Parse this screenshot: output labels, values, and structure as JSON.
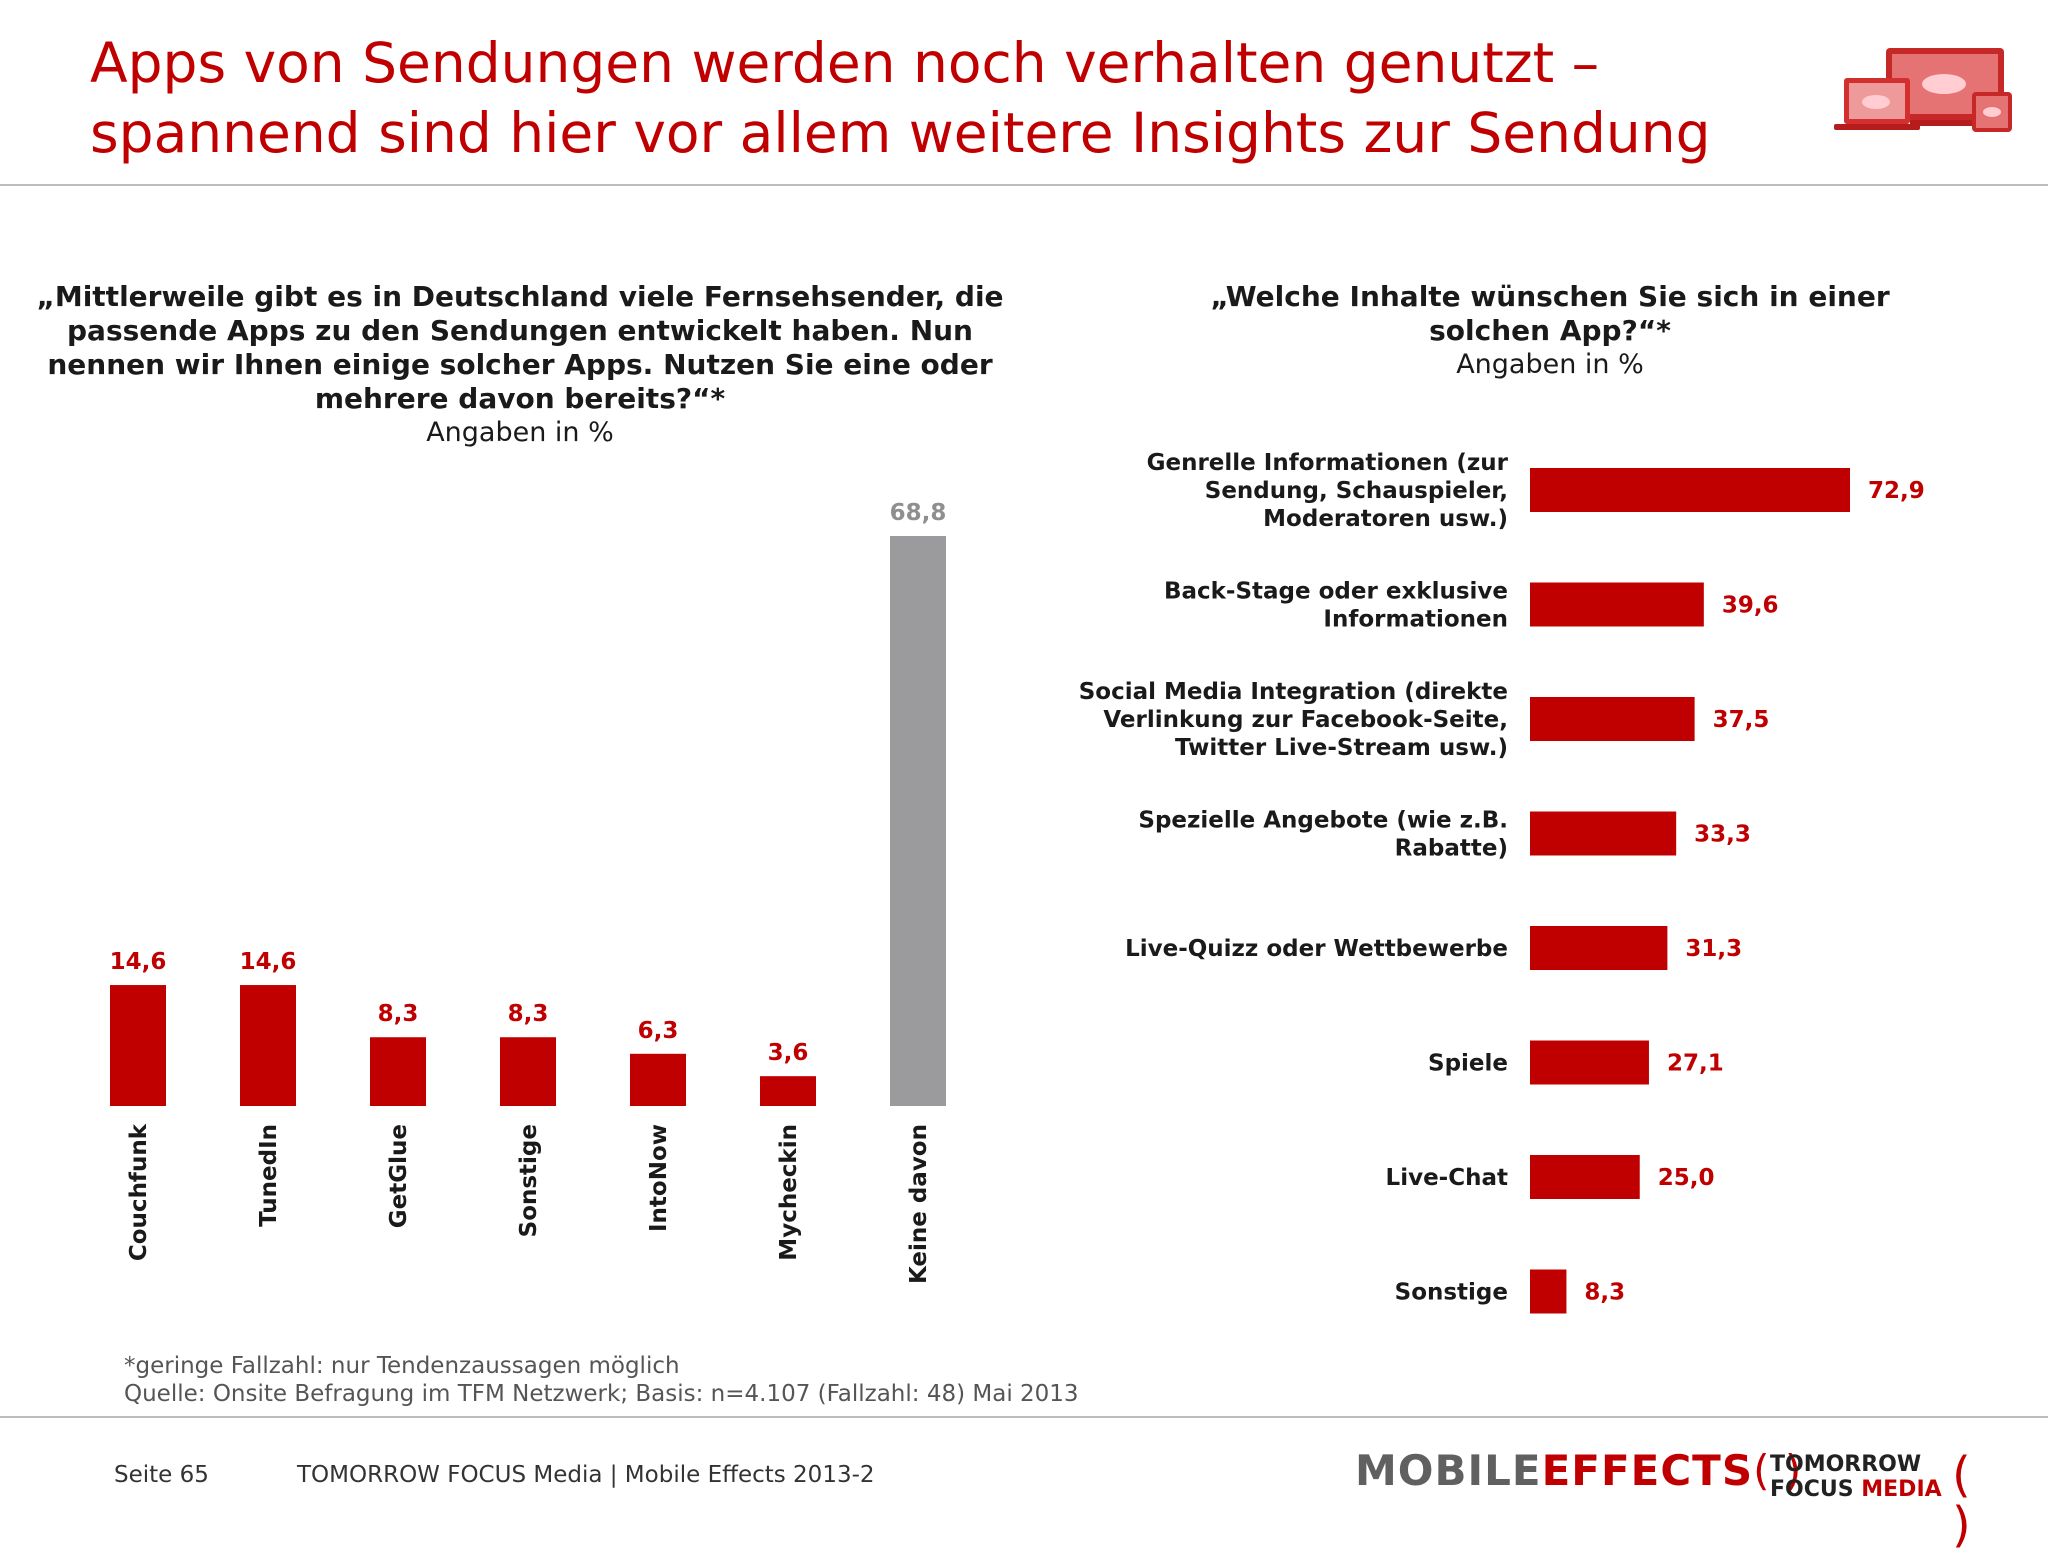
{
  "title": {
    "line1": "Apps von Sendungen werden noch verhalten genutzt –",
    "line2": "spannend sind hier vor allem weitere Insights zur Sendung"
  },
  "left_question": {
    "line1": "„Mittlerweile gibt es in Deutschland viele Fernsehsender, die",
    "line2": "passende Apps zu den Sendungen entwickelt haben. Nun",
    "line3": "nennen wir Ihnen einige solcher Apps. Nutzen Sie eine oder",
    "line4": "mehrere davon bereits?“*",
    "unit": "Angaben in %"
  },
  "right_question": {
    "line1": "„Welche Inhalte wünschen Sie sich in einer",
    "line2": "solchen App?“*",
    "unit": "Angaben in %"
  },
  "chart_data": [
    {
      "type": "bar",
      "orientation": "vertical",
      "categories": [
        "Couchfunk",
        "TunedIn",
        "GetGlue",
        "Sonstige",
        "IntoNow",
        "Mycheckin",
        "Keine davon"
      ],
      "values": [
        14.6,
        14.6,
        8.3,
        8.3,
        6.3,
        3.6,
        68.8
      ],
      "labels": [
        "14,6",
        "14,6",
        "8,3",
        "8,3",
        "6,3",
        "3,6",
        "68,8"
      ],
      "colors": [
        "#c00000",
        "#c00000",
        "#c00000",
        "#c00000",
        "#c00000",
        "#c00000",
        "#9b9a9c"
      ],
      "ylim": [
        0,
        68.8
      ],
      "grid": false
    },
    {
      "type": "bar",
      "orientation": "horizontal",
      "categories": [
        [
          "Genrelle Informationen (zur",
          "Sendung, Schauspieler,",
          "Moderatoren usw.)"
        ],
        [
          "Back-Stage oder exklusive",
          "Informationen"
        ],
        [
          "Social Media Integration (direkte",
          "Verlinkung zur Facebook-Seite,",
          "Twitter Live-Stream usw.)"
        ],
        [
          "Spezielle Angebote (wie z.B.",
          "Rabatte)"
        ],
        [
          "Live-Quizz oder Wettbewerbe"
        ],
        [
          "Spiele"
        ],
        [
          "Live-Chat"
        ],
        [
          "Sonstige"
        ]
      ],
      "values": [
        72.9,
        39.6,
        37.5,
        33.3,
        31.3,
        27.1,
        25.0,
        8.3
      ],
      "labels": [
        "72,9",
        "39,6",
        "37,5",
        "33,3",
        "31,3",
        "27,1",
        "25,0",
        "8,3"
      ],
      "color": "#c00000",
      "xlim": [
        0,
        72.9
      ],
      "grid": false
    }
  ],
  "footnote": {
    "line1": "*geringe Fallzahl: nur Tendenzaussagen möglich",
    "line2": "Quelle: Onsite Befragung im TFM Netzwerk; Basis: n=4.107 (Fallzahl: 48) Mai 2013"
  },
  "footer": {
    "page": "Seite 65",
    "source": "TOMORROW FOCUS Media  |  Mobile Effects 2013-2"
  },
  "brand": {
    "mobile": "MOBILE",
    "effects": "EFFECTS",
    "tfm_line1": "TOMORROW",
    "tfm_focus": "FOCUS",
    "tfm_media": "MEDIA"
  }
}
